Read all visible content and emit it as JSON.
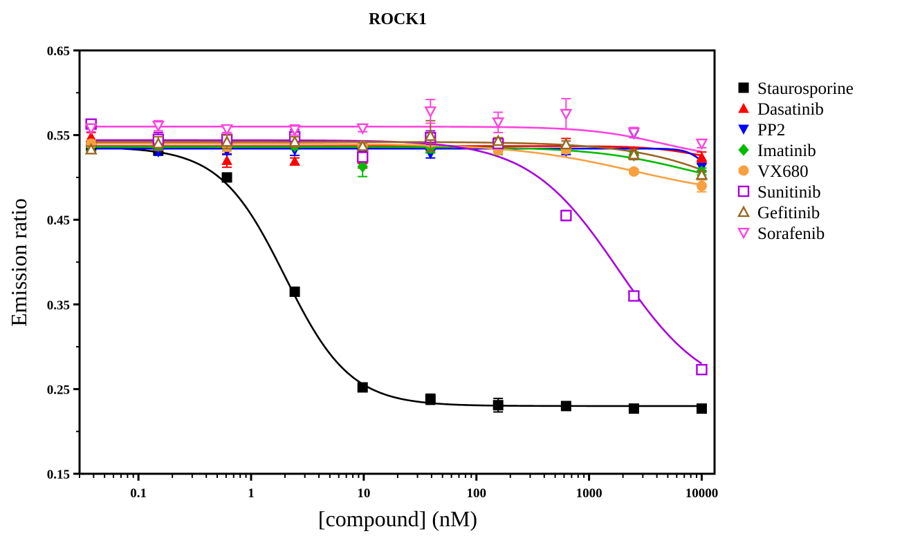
{
  "chart_data": {
    "type": "scatter",
    "title": "ROCK1",
    "xlabel": "[compound] (nM)",
    "ylabel": "Emission ratio",
    "x_scale": "log",
    "xlim": [
      0.03,
      13000
    ],
    "ylim": [
      0.15,
      0.65
    ],
    "x_ticks": [
      0.1,
      1,
      10,
      100,
      1000,
      10000
    ],
    "x_tick_labels": [
      "0.1",
      "1",
      "10",
      "100",
      "1000",
      "10000"
    ],
    "y_ticks": [
      0.15,
      0.25,
      0.35,
      0.45,
      0.55,
      0.65
    ],
    "y_tick_labels": [
      "0.15",
      "0.25",
      "0.35",
      "0.45",
      "0.55",
      "0.65"
    ],
    "legend_position": "right",
    "x": [
      0.038,
      0.15,
      0.61,
      2.44,
      9.77,
      39.1,
      156,
      625,
      2500,
      10000
    ],
    "series": [
      {
        "name": "Staurosporine",
        "color": "#000000",
        "marker": "square-filled",
        "y": [
          0.537,
          0.532,
          0.5,
          0.365,
          0.252,
          0.238,
          0.231,
          0.23,
          0.227,
          0.227
        ],
        "err": [
          0.004,
          0.004,
          0.003,
          0.003,
          0.003,
          0.006,
          0.008,
          0.004,
          0.003,
          0.003
        ],
        "fit": {
          "top": 0.536,
          "bottom": 0.23,
          "ic50": 2.0,
          "hill": 1.5
        }
      },
      {
        "name": "Dasatinib",
        "color": "#ff0000",
        "marker": "triangle-up-filled",
        "y": [
          0.548,
          0.54,
          0.52,
          0.519,
          0.521,
          0.539,
          0.54,
          0.54,
          0.531,
          0.524
        ],
        "err": [
          0.005,
          0.006,
          0.008,
          0.004,
          0.01,
          0.01,
          0.006,
          0.006,
          0.004,
          0.006
        ],
        "fit": {
          "top": 0.537,
          "bottom": 0.517,
          "ic50": 9000,
          "hill": 2.0
        }
      },
      {
        "name": "PP2",
        "color": "#0000ff",
        "marker": "triangle-down-filled",
        "y": [
          0.534,
          0.53,
          0.531,
          0.532,
          0.528,
          0.528,
          0.537,
          0.531,
          0.551,
          0.512
        ],
        "err": [
          0.004,
          0.004,
          0.004,
          0.006,
          0.004,
          0.005,
          0.004,
          0.004,
          0.004,
          0.004
        ],
        "fit": {
          "top": 0.534,
          "bottom": 0.505,
          "ic50": 10000,
          "hill": 6.0
        }
      },
      {
        "name": "Imatinib",
        "color": "#00bb00",
        "marker": "diamond-filled",
        "y": [
          0.536,
          0.537,
          0.537,
          0.537,
          0.513,
          0.535,
          0.533,
          0.534,
          0.526,
          0.507
        ],
        "err": [
          0.004,
          0.004,
          0.004,
          0.004,
          0.012,
          0.006,
          0.006,
          0.004,
          0.004,
          0.004
        ],
        "fit": {
          "top": 0.536,
          "bottom": 0.48,
          "ic50": 8000,
          "hill": 1.0
        }
      },
      {
        "name": "VX680",
        "color": "#f7a040",
        "marker": "circle-filled",
        "y": [
          0.54,
          0.541,
          0.537,
          0.541,
          0.537,
          0.541,
          0.532,
          0.533,
          0.507,
          0.49
        ],
        "err": [
          0.004,
          0.006,
          0.006,
          0.004,
          0.004,
          0.004,
          0.004,
          0.004,
          0.003,
          0.007
        ],
        "fit": {
          "top": 0.54,
          "bottom": 0.475,
          "ic50": 2500,
          "hill": 0.8
        }
      },
      {
        "name": "Sunitinib",
        "color": "#aa00dd",
        "marker": "square-open",
        "y": [
          0.563,
          0.545,
          0.545,
          0.548,
          0.524,
          0.547,
          0.54,
          0.455,
          0.36,
          0.273
        ],
        "err": [
          0.004,
          0.008,
          0.004,
          0.008,
          0.004,
          0.008,
          0.004,
          0.006,
          0.004,
          0.004
        ],
        "fit": {
          "top": 0.544,
          "bottom": 0.24,
          "ic50": 1800,
          "hill": 1.1
        }
      },
      {
        "name": "Gefitinib",
        "color": "#996622",
        "marker": "triangle-up-open",
        "y": [
          0.533,
          0.54,
          0.542,
          0.542,
          0.537,
          0.549,
          0.543,
          0.539,
          0.527,
          0.503
        ],
        "err": [
          0.004,
          0.008,
          0.008,
          0.006,
          0.004,
          0.018,
          0.004,
          0.004,
          0.006,
          0.004
        ],
        "fit": {
          "top": 0.542,
          "bottom": 0.42,
          "ic50": 30000,
          "hill": 0.9
        }
      },
      {
        "name": "Sorafenib",
        "color": "#ff44dd",
        "marker": "triangle-down-open",
        "y": [
          0.558,
          0.561,
          0.557,
          0.556,
          0.558,
          0.578,
          0.565,
          0.575,
          0.553,
          0.54
        ],
        "err": [
          0.004,
          0.006,
          0.004,
          0.006,
          0.004,
          0.014,
          0.012,
          0.018,
          0.006,
          0.005
        ],
        "fit": {
          "top": 0.56,
          "bottom": 0.52,
          "ic50": 4500,
          "hill": 1.3
        }
      }
    ]
  }
}
